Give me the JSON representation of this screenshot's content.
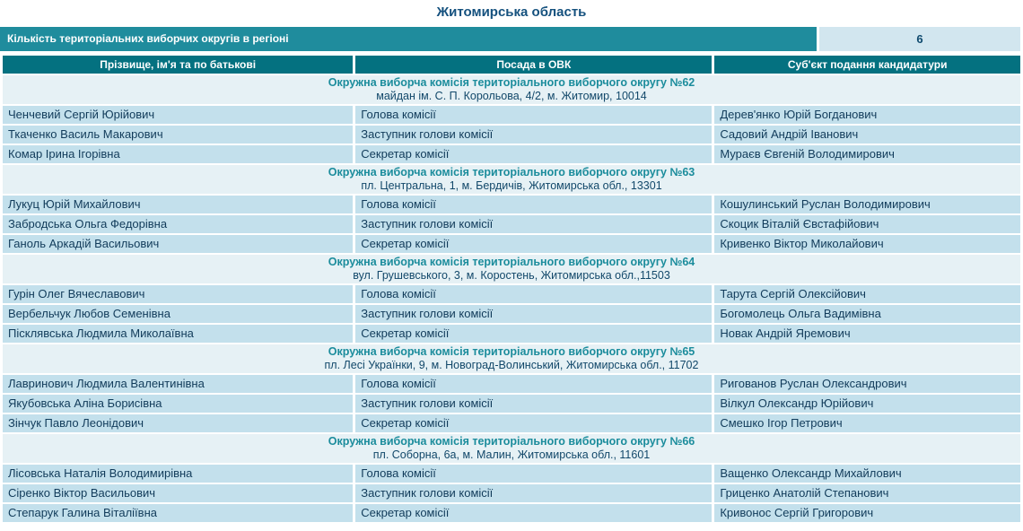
{
  "page": {
    "title": "Житомирська область"
  },
  "stats": {
    "label": "Кількість територіальних виборчих округів в регіоні",
    "value": "6"
  },
  "colors": {
    "stat_bar_teal": "#1f8c9d",
    "table_header_teal": "#047180",
    "group_header_bg": "#e6f1f5",
    "row_bg": "#c3e0ec",
    "value_box_bg": "#d2e6ef",
    "group_title_teal": "#1b8c9c",
    "dark_navy_text": "#113b5a"
  },
  "table": {
    "columns": [
      "Прізвище, ім'я та по батькові",
      "Посада в ОВК",
      "Суб'єкт подання кандидатури"
    ],
    "groups": [
      {
        "title": "Окружна виборча комісія територіального виборчого округу №62",
        "address": "майдан ім. С. П. Корольова, 4/2, м. Житомир, 10014",
        "rows": [
          [
            "Ченчевий Сергій Юрійович",
            "Голова комісії",
            "Дерев'янко Юрій Богданович"
          ],
          [
            "Ткаченко Василь Макарович",
            "Заступник голови комісії",
            "Садовий Андрій Іванович"
          ],
          [
            "Комар Ірина Ігорівна",
            "Секретар комісії",
            "Мураєв Євгеній Володимирович"
          ]
        ]
      },
      {
        "title": "Окружна виборча комісія територіального виборчого округу №63",
        "address": "пл. Центральна, 1, м. Бердичів, Житомирська обл., 13301",
        "rows": [
          [
            "Лукуц Юрій Михайлович",
            "Голова комісії",
            "Кошулинський Руслан Володимирович"
          ],
          [
            "Забродська Ольга Федорівна",
            "Заступник голови комісії",
            "Скоцик Віталій Євстафійович"
          ],
          [
            "Ганоль Аркадій Васильович",
            "Секретар комісії",
            "Кривенко Віктор Миколайович"
          ]
        ]
      },
      {
        "title": "Окружна виборча комісія територіального виборчого округу №64",
        "address": "вул. Грушевського, 3, м. Коростень, Житомирська обл.,11503",
        "rows": [
          [
            "Гурін Олег Вячеславович",
            "Голова комісії",
            "Тарута Сергій Олексійович"
          ],
          [
            "Вербельчук Любов Семенівна",
            "Заступник голови комісії",
            "Богомолець Ольга Вадимівна"
          ],
          [
            "Пісклявська Людмила Миколаївна",
            "Секретар комісії",
            "Новак Андрій Яремович"
          ]
        ]
      },
      {
        "title": "Окружна виборча комісія територіального виборчого округу №65",
        "address": "пл. Лесі Українки, 9, м. Новоград-Волинський, Житомирська обл., 11702",
        "rows": [
          [
            "Лавринович Людмила Валентинівна",
            "Голова комісії",
            "Ригованов Руслан Олександрович"
          ],
          [
            "Якубовська Аліна Борисівна",
            "Заступник голови комісії",
            "Вілкул Олександр Юрійович"
          ],
          [
            "Зінчук Павло Леонідович",
            "Секретар комісії",
            "Смешко Ігор Петрович"
          ]
        ]
      },
      {
        "title": "Окружна виборча комісія територіального виборчого округу №66",
        "address": "пл. Соборна, 6а, м. Малин, Житомирська обл., 11601",
        "rows": [
          [
            "Лісовська Наталія Володимирівна",
            "Голова комісії",
            "Ващенко Олександр Михайлович"
          ],
          [
            "Сіренко Віктор Васильович",
            "Заступник голови комісії",
            "Гриценко Анатолій Степанович"
          ],
          [
            "Степарук Галина Віталіївна",
            "Секретар комісії",
            "Кривонос Сергій Григорович"
          ]
        ]
      }
    ]
  }
}
